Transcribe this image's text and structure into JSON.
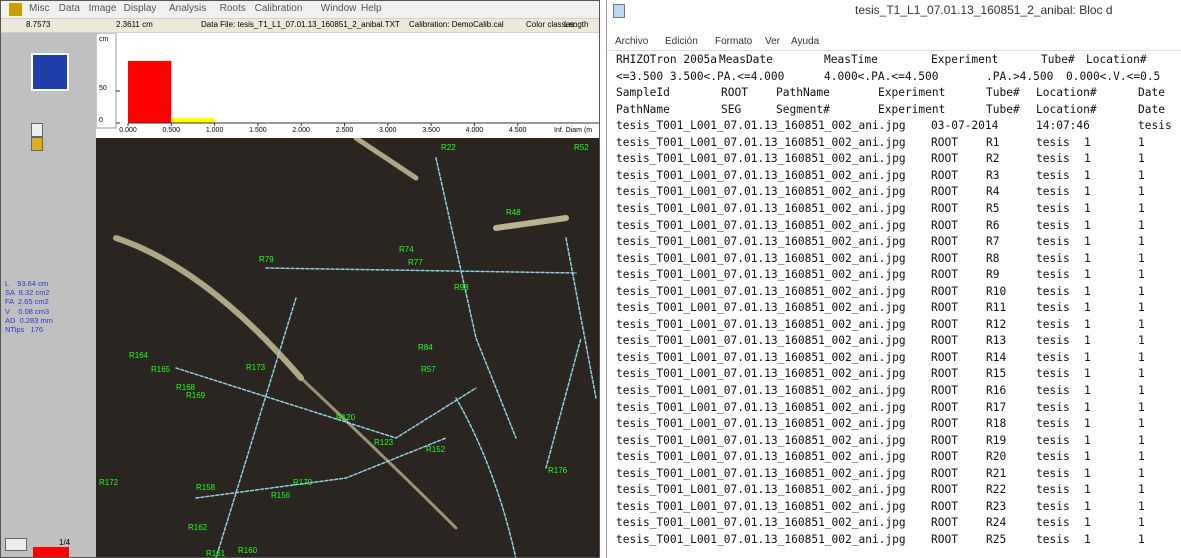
{
  "app": {
    "menu": [
      "Misc",
      "Data",
      "Image",
      "Display",
      "Analysis",
      "Roots",
      "Calibration",
      "Window",
      "Help"
    ],
    "toolbar": [
      "8.7573",
      "2.3611 cm",
      "Data File: tesis_T1_L1_07.01.13_160851_2_anibal.TXT",
      "Calibration: DemoCalib.cal",
      "Color classes:",
      "Length"
    ],
    "stats": [
      "L    93.64 cm",
      "SA  8.32 cm2",
      "FA  2.65 cm2",
      "V    0.08 cm3",
      "AD  0.283 mm",
      "NTips   176"
    ],
    "page_indicator": "1/4",
    "root_labels": [
      "R22",
      "R52",
      "R48",
      "R79",
      "R74",
      "R77",
      "R93",
      "R120",
      "R123",
      "R152",
      "R164",
      "R165",
      "R168",
      "R169",
      "R170",
      "R172",
      "R173",
      "R156",
      "R158",
      "R176",
      "R162",
      "R161",
      "R160",
      "R84",
      "R57"
    ]
  },
  "chart_data": {
    "type": "histogram",
    "ylabel": "cm",
    "xlabel": "Inf. Diam (m",
    "bins": [
      0,
      0.5,
      1.0,
      1.5,
      2.0,
      2.5,
      3.0,
      3.5,
      4.0,
      4.5,
      5.0
    ],
    "values": [
      97,
      8,
      0,
      0,
      0,
      0,
      0,
      0,
      0,
      0
    ],
    "colors": [
      "#ff0000",
      "#ffff00",
      "#00cc00",
      "#00cc00",
      "#00cc00",
      "#00cc00",
      "#00cc00",
      "#00cc00",
      "#00cc00",
      "#00cc00"
    ],
    "xlim": [
      0,
      5
    ],
    "ylim": [
      0,
      100
    ],
    "xticks": [
      {
        "value": 0,
        "label": "0.000"
      },
      {
        "value": 0.5,
        "label": "0.500"
      },
      {
        "value": 1,
        "label": "1.000"
      },
      {
        "value": 1.5,
        "label": "1.500"
      },
      {
        "value": 2,
        "label": "2.000"
      },
      {
        "value": 2.5,
        "label": "2.500"
      },
      {
        "value": 3,
        "label": "3.000"
      },
      {
        "value": 3.5,
        "label": "3.500"
      },
      {
        "value": 4,
        "label": "4.000"
      },
      {
        "value": 4.5,
        "label": "4.500"
      }
    ],
    "yticks": [
      0,
      50
    ]
  },
  "notepad": {
    "title": "tesis_T1_L1_07.01.13_160851_2_anibal: Bloc d",
    "menu": [
      "Archivo",
      "Edición",
      "Formato",
      "Ver",
      "Ayuda"
    ],
    "header_rows": [
      [
        "RHIZOTron 2005a",
        "MeasDate",
        "MeasTime",
        "Experiment",
        "Tube#",
        "Location#"
      ],
      [
        "<=3.500 3.500<.PA.<=4.000",
        "4.000<.PA.<=4.500",
        ".PA.>4.500",
        "0.000<.V.<=0.5"
      ],
      [
        "SampleId",
        "ROOT",
        "PathName",
        "Experiment",
        "Tube#",
        "Location#",
        "Date"
      ],
      [
        "PathName",
        "SEG",
        "Segment#",
        "Experiment",
        "Tube#",
        "Location#",
        "Date"
      ],
      [
        "tesis_T001_L001_07.01.13_160851_002_ani.jpg",
        "03-07-2014",
        "14:07:46",
        "tesis"
      ]
    ],
    "rows": [
      [
        "tesis_T001_L001_07.01.13_160851_002_ani.jpg",
        "ROOT",
        "R1",
        "tesis",
        "1",
        "1"
      ],
      [
        "tesis_T001_L001_07.01.13_160851_002_ani.jpg",
        "ROOT",
        "R2",
        "tesis",
        "1",
        "1"
      ],
      [
        "tesis_T001_L001_07.01.13_160851_002_ani.jpg",
        "ROOT",
        "R3",
        "tesis",
        "1",
        "1"
      ],
      [
        "tesis_T001_L001_07.01.13_160851_002_ani.jpg",
        "ROOT",
        "R4",
        "tesis",
        "1",
        "1"
      ],
      [
        "tesis_T001_L001_07.01.13_160851_002_ani.jpg",
        "ROOT",
        "R5",
        "tesis",
        "1",
        "1"
      ],
      [
        "tesis_T001_L001_07.01.13_160851_002_ani.jpg",
        "ROOT",
        "R6",
        "tesis",
        "1",
        "1"
      ],
      [
        "tesis_T001_L001_07.01.13_160851_002_ani.jpg",
        "ROOT",
        "R7",
        "tesis",
        "1",
        "1"
      ],
      [
        "tesis_T001_L001_07.01.13_160851_002_ani.jpg",
        "ROOT",
        "R8",
        "tesis",
        "1",
        "1"
      ],
      [
        "tesis_T001_L001_07.01.13_160851_002_ani.jpg",
        "ROOT",
        "R9",
        "tesis",
        "1",
        "1"
      ],
      [
        "tesis_T001_L001_07.01.13_160851_002_ani.jpg",
        "ROOT",
        "R10",
        "tesis",
        "1",
        "1"
      ],
      [
        "tesis_T001_L001_07.01.13_160851_002_ani.jpg",
        "ROOT",
        "R11",
        "tesis",
        "1",
        "1"
      ],
      [
        "tesis_T001_L001_07.01.13_160851_002_ani.jpg",
        "ROOT",
        "R12",
        "tesis",
        "1",
        "1"
      ],
      [
        "tesis_T001_L001_07.01.13_160851_002_ani.jpg",
        "ROOT",
        "R13",
        "tesis",
        "1",
        "1"
      ],
      [
        "tesis_T001_L001_07.01.13_160851_002_ani.jpg",
        "ROOT",
        "R14",
        "tesis",
        "1",
        "1"
      ],
      [
        "tesis_T001_L001_07.01.13_160851_002_ani.jpg",
        "ROOT",
        "R15",
        "tesis",
        "1",
        "1"
      ],
      [
        "tesis_T001_L001_07.01.13_160851_002_ani.jpg",
        "ROOT",
        "R16",
        "tesis",
        "1",
        "1"
      ],
      [
        "tesis_T001_L001_07.01.13_160851_002_ani.jpg",
        "ROOT",
        "R17",
        "tesis",
        "1",
        "1"
      ],
      [
        "tesis_T001_L001_07.01.13_160851_002_ani.jpg",
        "ROOT",
        "R18",
        "tesis",
        "1",
        "1"
      ],
      [
        "tesis_T001_L001_07.01.13_160851_002_ani.jpg",
        "ROOT",
        "R19",
        "tesis",
        "1",
        "1"
      ],
      [
        "tesis_T001_L001_07.01.13_160851_002_ani.jpg",
        "ROOT",
        "R20",
        "tesis",
        "1",
        "1"
      ],
      [
        "tesis_T001_L001_07.01.13_160851_002_ani.jpg",
        "ROOT",
        "R21",
        "tesis",
        "1",
        "1"
      ],
      [
        "tesis_T001_L001_07.01.13_160851_002_ani.jpg",
        "ROOT",
        "R22",
        "tesis",
        "1",
        "1"
      ],
      [
        "tesis_T001_L001_07.01.13_160851_002_ani.jpg",
        "ROOT",
        "R23",
        "tesis",
        "1",
        "1"
      ],
      [
        "tesis_T001_L001_07.01.13_160851_002_ani.jpg",
        "ROOT",
        "R24",
        "tesis",
        "1",
        "1"
      ],
      [
        "tesis_T001_L001_07.01.13_160851_002_ani.jpg",
        "ROOT",
        "R25",
        "tesis",
        "1",
        "1"
      ]
    ]
  }
}
